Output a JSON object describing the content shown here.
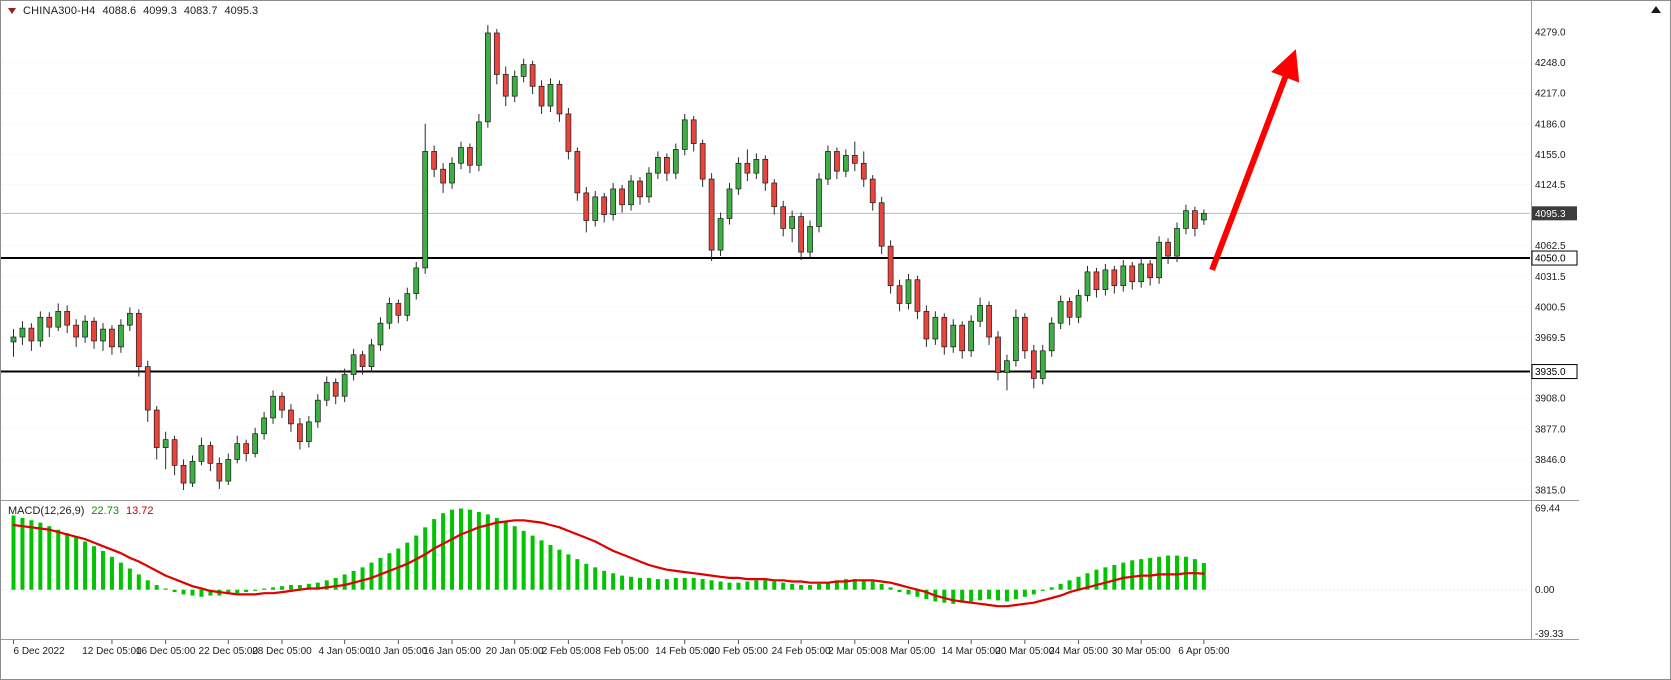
{
  "header": {
    "symbol": "CHINA300-H4",
    "open": "4088.6",
    "high": "4099.3",
    "low": "4083.7",
    "close": "4095.3"
  },
  "macd_header": {
    "name": "MACD(12,26,9)",
    "value": "22.73",
    "signal": "13.72"
  },
  "chart_data": {
    "type": "candlestick",
    "title": "CHINA300-H4",
    "timeframe": "H4",
    "price_axis": [
      {
        "t": "4279.0",
        "p": 4279.0
      },
      {
        "t": "4248.0",
        "p": 4248.0
      },
      {
        "t": "4217.0",
        "p": 4217.0
      },
      {
        "t": "4186.0",
        "p": 4186.0
      },
      {
        "t": "4155.0",
        "p": 4155.0
      },
      {
        "t": "4124.5",
        "p": 4124.5
      },
      {
        "t": "4062.5",
        "p": 4062.5
      },
      {
        "t": "4031.5",
        "p": 4031.5
      },
      {
        "t": "4000.5",
        "p": 4000.5
      },
      {
        "t": "3969.5",
        "p": 3969.5
      },
      {
        "t": "3908.0",
        "p": 3908.0
      },
      {
        "t": "3877.0",
        "p": 3877.0
      },
      {
        "t": "3846.0",
        "p": 3846.0
      },
      {
        "t": "3815.0",
        "p": 3815.0
      }
    ],
    "time_axis": [
      {
        "label": "6 Dec 2022",
        "i": 0
      },
      {
        "label": "12 Dec 05:00",
        "i": 11
      },
      {
        "label": "16 Dec 05:00",
        "i": 17
      },
      {
        "label": "22 Dec 05:00",
        "i": 24
      },
      {
        "label": "28 Dec 05:00",
        "i": 30
      },
      {
        "label": "4 Jan 05:00",
        "i": 37
      },
      {
        "label": "10 Jan 05:00",
        "i": 43
      },
      {
        "label": "16 Jan 05:00",
        "i": 49
      },
      {
        "label": "20 Jan 05:00",
        "i": 56
      },
      {
        "label": "2 Feb 05:00",
        "i": 62
      },
      {
        "label": "8 Feb 05:00",
        "i": 68
      },
      {
        "label": "14 Feb 05:00",
        "i": 75
      },
      {
        "label": "20 Feb 05:00",
        "i": 81
      },
      {
        "label": "24 Feb 05:00",
        "i": 88
      },
      {
        "label": "2 Mar 05:00",
        "i": 94
      },
      {
        "label": "8 Mar 05:00",
        "i": 100
      },
      {
        "label": "14 Mar 05:00",
        "i": 107
      },
      {
        "label": "20 Mar 05:00",
        "i": 113
      },
      {
        "label": "24 Mar 05:00",
        "i": 119
      },
      {
        "label": "30 Mar 05:00",
        "i": 126
      },
      {
        "label": "6 Apr 05:00",
        "i": 133
      }
    ],
    "hlines": [
      {
        "price": 4050.0,
        "label": "4050.0"
      },
      {
        "price": 3935.0,
        "label": "3935.0"
      }
    ],
    "bid": {
      "price": 4095.3,
      "label": "4095.3"
    },
    "arrow": {
      "from_index": 134.2,
      "from_price": 4038,
      "to_index": 143.2,
      "to_price": 4253
    },
    "candles": [
      [
        3965,
        3978,
        3950,
        3970
      ],
      [
        3970,
        3986,
        3962,
        3979
      ],
      [
        3979,
        3984,
        3956,
        3966
      ],
      [
        3966,
        3996,
        3960,
        3990
      ],
      [
        3990,
        3995,
        3970,
        3980
      ],
      [
        3980,
        4004,
        3976,
        3996
      ],
      [
        3996,
        4002,
        3974,
        3982
      ],
      [
        3982,
        3988,
        3960,
        3970
      ],
      [
        3970,
        3992,
        3964,
        3986
      ],
      [
        3986,
        3990,
        3958,
        3966
      ],
      [
        3966,
        3984,
        3956,
        3978
      ],
      [
        3978,
        3982,
        3952,
        3960
      ],
      [
        3960,
        3988,
        3954,
        3982
      ],
      [
        3982,
        4000,
        3976,
        3994
      ],
      [
        3994,
        3998,
        3930,
        3940
      ],
      [
        3940,
        3946,
        3884,
        3896
      ],
      [
        3896,
        3900,
        3846,
        3858
      ],
      [
        3858,
        3874,
        3836,
        3866
      ],
      [
        3866,
        3870,
        3830,
        3840
      ],
      [
        3840,
        3846,
        3815,
        3822
      ],
      [
        3822,
        3850,
        3818,
        3844
      ],
      [
        3844,
        3868,
        3840,
        3860
      ],
      [
        3860,
        3864,
        3834,
        3842
      ],
      [
        3842,
        3848,
        3816,
        3824
      ],
      [
        3824,
        3852,
        3820,
        3846
      ],
      [
        3846,
        3870,
        3842,
        3862
      ],
      [
        3862,
        3866,
        3844,
        3852
      ],
      [
        3852,
        3878,
        3848,
        3872
      ],
      [
        3872,
        3894,
        3866,
        3888
      ],
      [
        3888,
        3916,
        3882,
        3910
      ],
      [
        3910,
        3914,
        3888,
        3896
      ],
      [
        3896,
        3902,
        3874,
        3882
      ],
      [
        3882,
        3888,
        3856,
        3864
      ],
      [
        3864,
        3890,
        3858,
        3884
      ],
      [
        3884,
        3912,
        3878,
        3906
      ],
      [
        3906,
        3930,
        3900,
        3924
      ],
      [
        3924,
        3928,
        3902,
        3910
      ],
      [
        3910,
        3938,
        3904,
        3932
      ],
      [
        3932,
        3958,
        3926,
        3952
      ],
      [
        3952,
        3956,
        3932,
        3940
      ],
      [
        3940,
        3968,
        3934,
        3962
      ],
      [
        3962,
        3990,
        3956,
        3984
      ],
      [
        3984,
        4010,
        3978,
        4004
      ],
      [
        4004,
        4008,
        3984,
        3992
      ],
      [
        3992,
        4020,
        3986,
        4014
      ],
      [
        4014,
        4046,
        4008,
        4040
      ],
      [
        4040,
        4186,
        4034,
        4158
      ],
      [
        4158,
        4164,
        4132,
        4140
      ],
      [
        4140,
        4146,
        4116,
        4126
      ],
      [
        4126,
        4152,
        4120,
        4146
      ],
      [
        4146,
        4168,
        4140,
        4162
      ],
      [
        4162,
        4166,
        4136,
        4144
      ],
      [
        4144,
        4196,
        4138,
        4188
      ],
      [
        4188,
        4286,
        4182,
        4278
      ],
      [
        4278,
        4282,
        4226,
        4236
      ],
      [
        4236,
        4244,
        4204,
        4214
      ],
      [
        4214,
        4240,
        4208,
        4234
      ],
      [
        4234,
        4252,
        4228,
        4246
      ],
      [
        4246,
        4250,
        4216,
        4224
      ],
      [
        4224,
        4230,
        4196,
        4204
      ],
      [
        4204,
        4232,
        4198,
        4226
      ],
      [
        4226,
        4230,
        4188,
        4196
      ],
      [
        4196,
        4202,
        4150,
        4158
      ],
      [
        4158,
        4162,
        4108,
        4116
      ],
      [
        4116,
        4122,
        4076,
        4088
      ],
      [
        4088,
        4118,
        4082,
        4112
      ],
      [
        4112,
        4116,
        4086,
        4094
      ],
      [
        4094,
        4126,
        4088,
        4120
      ],
      [
        4120,
        4124,
        4096,
        4104
      ],
      [
        4104,
        4134,
        4098,
        4128
      ],
      [
        4128,
        4132,
        4104,
        4112
      ],
      [
        4112,
        4142,
        4106,
        4136
      ],
      [
        4136,
        4158,
        4130,
        4152
      ],
      [
        4152,
        4156,
        4128,
        4136
      ],
      [
        4136,
        4166,
        4130,
        4160
      ],
      [
        4160,
        4196,
        4154,
        4190
      ],
      [
        4190,
        4194,
        4158,
        4166
      ],
      [
        4166,
        4170,
        4122,
        4130
      ],
      [
        4130,
        4136,
        4047,
        4058
      ],
      [
        4058,
        4096,
        4052,
        4090
      ],
      [
        4090,
        4126,
        4084,
        4120
      ],
      [
        4120,
        4152,
        4114,
        4146
      ],
      [
        4146,
        4160,
        4128,
        4136
      ],
      [
        4136,
        4156,
        4130,
        4150
      ],
      [
        4150,
        4154,
        4118,
        4126
      ],
      [
        4126,
        4130,
        4094,
        4102
      ],
      [
        4102,
        4108,
        4072,
        4080
      ],
      [
        4080,
        4098,
        4066,
        4092
      ],
      [
        4092,
        4096,
        4048,
        4056
      ],
      [
        4056,
        4088,
        4050,
        4082
      ],
      [
        4082,
        4136,
        4076,
        4130
      ],
      [
        4130,
        4164,
        4124,
        4158
      ],
      [
        4158,
        4162,
        4130,
        4138
      ],
      [
        4138,
        4160,
        4132,
        4154
      ],
      [
        4154,
        4168,
        4138,
        4146
      ],
      [
        4146,
        4158,
        4122,
        4130
      ],
      [
        4130,
        4134,
        4098,
        4106
      ],
      [
        4106,
        4112,
        4054,
        4062
      ],
      [
        4062,
        4068,
        4014,
        4022
      ],
      [
        4022,
        4028,
        3996,
        4004
      ],
      [
        4004,
        4034,
        3998,
        4028
      ],
      [
        4028,
        4032,
        3988,
        3996
      ],
      [
        3996,
        4002,
        3960,
        3968
      ],
      [
        3968,
        3996,
        3962,
        3990
      ],
      [
        3990,
        3994,
        3952,
        3960
      ],
      [
        3960,
        3988,
        3954,
        3982
      ],
      [
        3982,
        3986,
        3948,
        3956
      ],
      [
        3956,
        3992,
        3950,
        3986
      ],
      [
        3986,
        4010,
        3980,
        4002
      ],
      [
        4002,
        4006,
        3962,
        3970
      ],
      [
        3970,
        3976,
        3926,
        3934
      ],
      [
        3934,
        3952,
        3916,
        3946
      ],
      [
        3946,
        3998,
        3940,
        3990
      ],
      [
        3990,
        3994,
        3948,
        3956
      ],
      [
        3956,
        3962,
        3918,
        3928
      ],
      [
        3928,
        3962,
        3922,
        3956
      ],
      [
        3956,
        3990,
        3950,
        3984
      ],
      [
        3984,
        4012,
        3978,
        4006
      ],
      [
        4006,
        4010,
        3982,
        3990
      ],
      [
        3990,
        4018,
        3984,
        4012
      ],
      [
        4012,
        4042,
        4006,
        4036
      ],
      [
        4036,
        4040,
        4010,
        4018
      ],
      [
        4018,
        4044,
        4012,
        4038
      ],
      [
        4038,
        4042,
        4014,
        4022
      ],
      [
        4022,
        4048,
        4016,
        4042
      ],
      [
        4042,
        4046,
        4018,
        4026
      ],
      [
        4026,
        4050,
        4020,
        4044
      ],
      [
        4044,
        4048,
        4022,
        4030
      ],
      [
        4030,
        4072,
        4024,
        4066
      ],
      [
        4066,
        4070,
        4044,
        4052
      ],
      [
        4052,
        4086,
        4046,
        4080
      ],
      [
        4080,
        4104,
        4074,
        4098
      ],
      [
        4098,
        4102,
        4072,
        4080
      ],
      [
        4088.6,
        4099.3,
        4083.7,
        4095.3
      ]
    ],
    "macd": {
      "name": "MACD(12,26,9)",
      "value": 22.73,
      "signal_value": 13.72,
      "max": 69.44,
      "min": -39.33,
      "scale": [
        {
          "t": "69.44",
          "v": 69.44
        },
        {
          "t": "0.00",
          "v": 0
        },
        {
          "t": "-39.33",
          "v": -39.33
        }
      ],
      "hist": [
        63,
        61,
        59,
        57,
        54,
        51,
        48,
        45,
        41,
        37,
        33,
        28,
        23,
        18,
        13,
        8,
        4,
        1,
        -2,
        -4,
        -5,
        -6,
        -5,
        -5,
        -4,
        -3,
        -2,
        -1,
        1,
        2,
        3,
        4,
        4,
        5,
        6,
        8,
        10,
        13,
        16,
        19,
        23,
        27,
        31,
        35,
        40,
        46,
        53,
        60,
        65,
        68,
        69,
        68,
        66,
        64,
        61,
        58,
        54,
        50,
        46,
        42,
        38,
        34,
        30,
        26,
        22,
        19,
        16,
        14,
        12,
        11,
        10,
        10,
        9,
        9,
        10,
        10,
        10,
        9,
        8,
        7,
        6,
        6,
        7,
        8,
        8,
        7,
        6,
        5,
        4,
        4,
        5,
        6,
        8,
        9,
        9,
        8,
        7,
        5,
        2,
        -2,
        -4,
        -6,
        -8,
        -10,
        -11,
        -12,
        -11,
        -10,
        -9,
        -8,
        -9,
        -10,
        -8,
        -6,
        -4,
        -1,
        2,
        5,
        8,
        11,
        14,
        17,
        19,
        21,
        23,
        25,
        26,
        27,
        28,
        29,
        29,
        28,
        26,
        22.73
      ],
      "signal": [
        55,
        54,
        53,
        52,
        51,
        49,
        47,
        45,
        43,
        40,
        37,
        34,
        31,
        27,
        24,
        20,
        16,
        12,
        9,
        6,
        3,
        1,
        -1,
        -2,
        -3,
        -4,
        -4,
        -4,
        -3,
        -3,
        -2,
        -1,
        0,
        1,
        1,
        2,
        3,
        4,
        6,
        8,
        10,
        13,
        16,
        19,
        22,
        26,
        30,
        35,
        39,
        43,
        47,
        50,
        53,
        55,
        57,
        58,
        59,
        59,
        58,
        57,
        55,
        53,
        50,
        47,
        44,
        41,
        37,
        33,
        30,
        27,
        24,
        21,
        19,
        17,
        16,
        15,
        14,
        13,
        12,
        11,
        10,
        10,
        9,
        9,
        9,
        8,
        8,
        7,
        7,
        6,
        6,
        6,
        7,
        7,
        8,
        8,
        8,
        7,
        6,
        4,
        2,
        0,
        -2,
        -5,
        -7,
        -9,
        -10,
        -11,
        -12,
        -13,
        -14,
        -14,
        -13,
        -12,
        -11,
        -9,
        -7,
        -5,
        -2,
        0,
        2,
        4,
        6,
        8,
        10,
        11,
        12,
        12,
        13,
        13,
        13,
        14,
        14,
        13.72
      ]
    },
    "colors": {
      "up": "#3cb043",
      "down": "#e8453c",
      "wick": "#2b2b2b",
      "hline": "#000000",
      "bid_line": "#b9b9c9",
      "grid": "#e9e9f2",
      "macd_hist": "#00c400",
      "macd_signal": "#e00000",
      "arrow": "#ff0000",
      "bid_label_bg": "#3c3c3c"
    }
  }
}
